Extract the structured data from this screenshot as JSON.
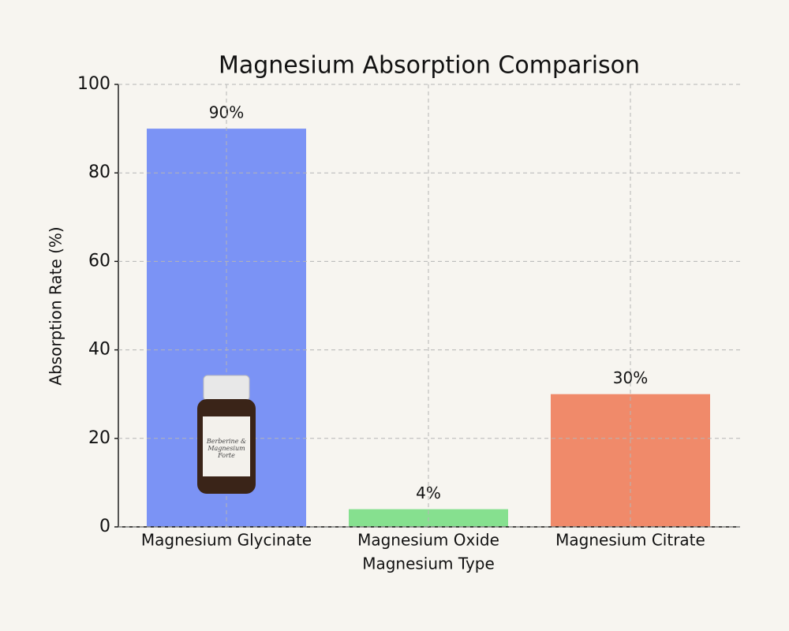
{
  "chart_data": {
    "type": "bar",
    "title": "Magnesium Absorption Comparison",
    "x_label": "Magnesium Type",
    "y_label": "Absorption Rate (%)",
    "categories": [
      "Magnesium Glycinate",
      "Magnesium Oxide",
      "Magnesium Citrate"
    ],
    "values": [
      90,
      4,
      30
    ],
    "value_labels": [
      "90%",
      "4%",
      "30%"
    ],
    "colors": [
      "#7b93f5",
      "#86e08f",
      "#f08a6a"
    ],
    "ylim": [
      0,
      100
    ],
    "yticks": [
      0,
      20,
      40,
      60,
      80,
      100
    ],
    "grid": true,
    "product_label": "Berberine & Magnesium Forte"
  }
}
